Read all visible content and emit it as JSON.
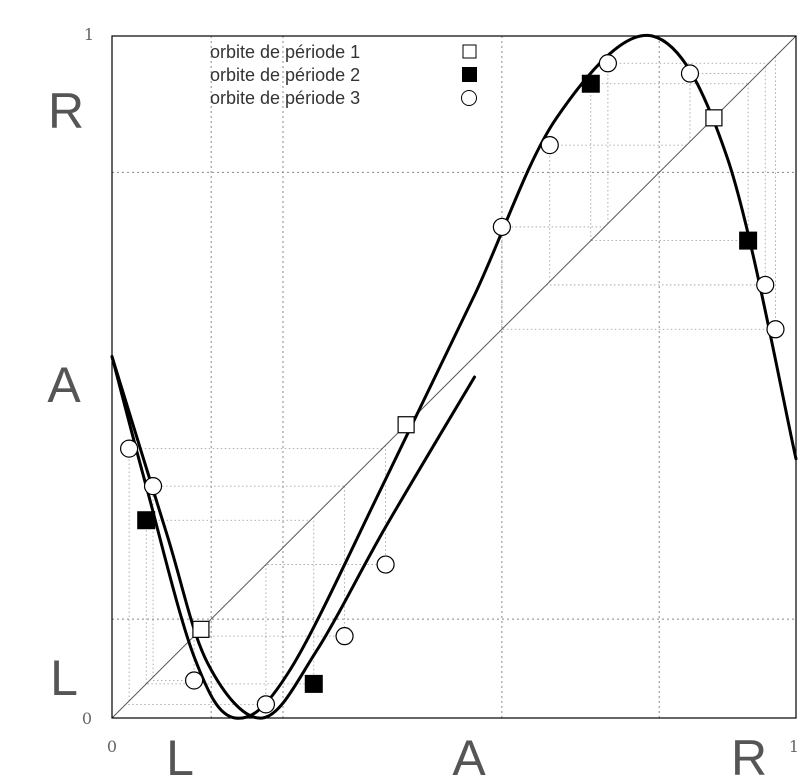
{
  "chart_data": {
    "type": "line",
    "xlim": [
      0,
      1
    ],
    "ylim": [
      0,
      1
    ],
    "x_tick_labels": [
      "0",
      "1"
    ],
    "y_tick_labels": [
      "0",
      "1"
    ],
    "region_labels_x": [
      "L",
      "A",
      "R"
    ],
    "region_labels_y": [
      "L",
      "A",
      "R"
    ],
    "grid_x": [
      0.145,
      0.25,
      0.57,
      0.8
    ],
    "grid_y": [
      0.145,
      0.8
    ],
    "curves": [
      {
        "points": [
          [
            0,
            0.53
          ],
          [
            0.05,
            0.34
          ],
          [
            0.12,
            0.09
          ],
          [
            0.18,
            0.0
          ],
          [
            0.26,
            0.07
          ],
          [
            0.4,
            0.35
          ],
          [
            0.53,
            0.62
          ],
          [
            0.65,
            0.88
          ],
          [
            0.79,
            1.0
          ],
          [
            0.9,
            0.82
          ],
          [
            1,
            0.38
          ]
        ]
      },
      {
        "points": [
          [
            0,
            0.53
          ],
          [
            0.08,
            0.27
          ],
          [
            0.14,
            0.08
          ],
          [
            0.22,
            0.0
          ],
          [
            0.3,
            0.1
          ],
          [
            0.4,
            0.28
          ],
          [
            0.53,
            0.5
          ]
        ]
      }
    ],
    "diagonal": true,
    "series": [
      {
        "name": "orbite de période 1",
        "marker": "square-open",
        "points": [
          [
            0.13,
            0.13
          ],
          [
            0.43,
            0.43
          ],
          [
            0.88,
            0.88
          ]
        ]
      },
      {
        "name": "orbite de période 2",
        "marker": "square-filled",
        "points": [
          [
            0.05,
            0.29
          ],
          [
            0.295,
            0.05
          ],
          [
            0.7,
            0.93
          ],
          [
            0.93,
            0.7
          ]
        ]
      },
      {
        "name": "orbite de période 3",
        "marker": "circle-open",
        "points": [
          [
            0.025,
            0.395
          ],
          [
            0.06,
            0.34
          ],
          [
            0.12,
            0.055
          ],
          [
            0.225,
            0.02
          ],
          [
            0.34,
            0.12
          ],
          [
            0.4,
            0.225
          ],
          [
            0.57,
            0.72
          ],
          [
            0.64,
            0.84
          ],
          [
            0.725,
            0.96
          ],
          [
            0.845,
            0.945
          ],
          [
            0.955,
            0.635
          ],
          [
            0.97,
            0.57
          ]
        ]
      }
    ],
    "legend_position": "top"
  }
}
